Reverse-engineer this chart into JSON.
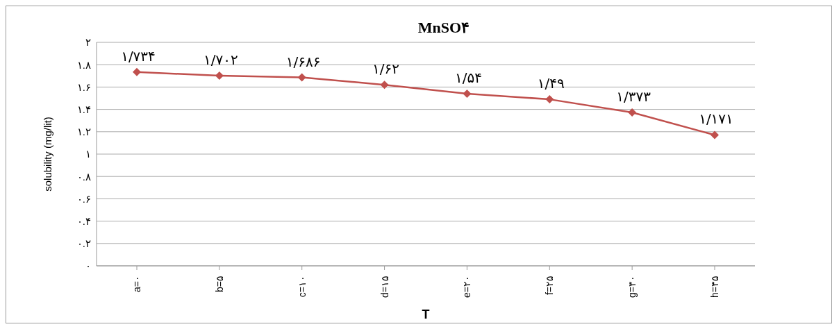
{
  "chart_data": {
    "type": "line",
    "title": "MnSO۴",
    "xlabel": "T",
    "ylabel": "solubility (mg/lit)",
    "categories": [
      "a=۰",
      "b=۵",
      "c=۱۰",
      "d=۱۵",
      "e=۲۰",
      "f=۲۵",
      "g=۳۰",
      "h=۳۵"
    ],
    "series": [
      {
        "color": "#c0504d",
        "values": [
          1.734,
          1.702,
          1.686,
          1.62,
          1.54,
          1.49,
          1.373,
          1.171
        ],
        "value_labels": [
          "۱/۷۳۴",
          "۱/۷۰۲",
          "۱/۶۸۶",
          "۱/۶۲",
          "۱/۵۴",
          "۱/۴۹",
          "۱/۳۷۳",
          "۱/۱۷۱"
        ]
      }
    ],
    "ylim": [
      0,
      2
    ],
    "yticks": [
      {
        "value": 0,
        "label": "۰"
      },
      {
        "value": 0.2,
        "label": "۰.۲"
      },
      {
        "value": 0.4,
        "label": "۰.۴"
      },
      {
        "value": 0.6,
        "label": "۰.۶"
      },
      {
        "value": 0.8,
        "label": "۰.۸"
      },
      {
        "value": 1,
        "label": "۱"
      },
      {
        "value": 1.2,
        "label": "۱.۲"
      },
      {
        "value": 1.4,
        "label": "۱.۴"
      },
      {
        "value": 1.6,
        "label": "۱.۶"
      },
      {
        "value": 1.8,
        "label": "۱.۸"
      },
      {
        "value": 2,
        "label": "۲"
      }
    ],
    "grid": "y",
    "marker": "diamond",
    "line_style": "solid",
    "legend": false
  }
}
